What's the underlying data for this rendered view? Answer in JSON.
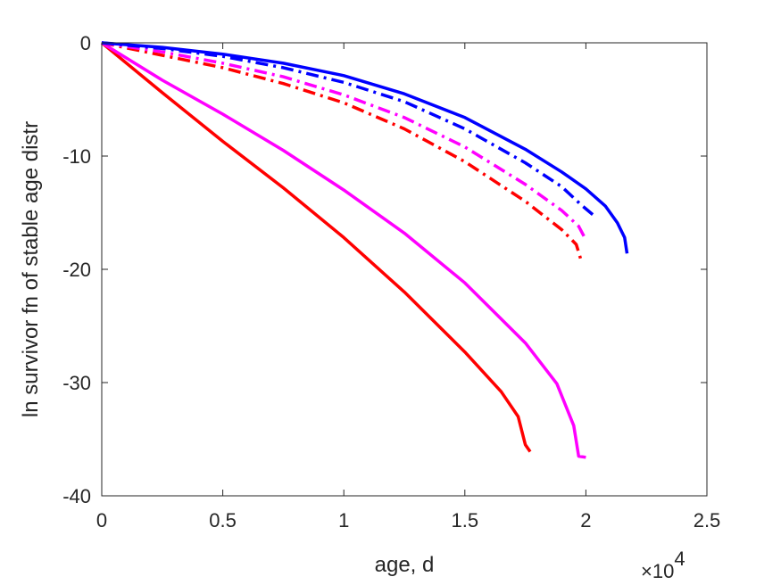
{
  "chart_data": {
    "type": "line",
    "title": "",
    "xlabel": "age, d",
    "ylabel": "ln survivor fn of stable age distr",
    "xlim": [
      0,
      25000
    ],
    "ylim": [
      -40,
      0
    ],
    "x_exponent_label": {
      "base": "×10",
      "exp": "4"
    },
    "x_tick_labels": [
      "0",
      "0.5",
      "1",
      "1.5",
      "2",
      "2.5"
    ],
    "x_tick_values": [
      0,
      5000,
      10000,
      15000,
      20000,
      25000
    ],
    "y_tick_labels": [
      "0",
      "-10",
      "-20",
      "-30",
      "-40"
    ],
    "y_tick_values": [
      0,
      -10,
      -20,
      -30,
      -40
    ],
    "grid": false,
    "series": [
      {
        "color": "#ff0000",
        "style": "solid",
        "x": [
          0,
          2500,
          5000,
          7500,
          10000,
          12500,
          15000,
          16500,
          17200,
          17500,
          17700
        ],
        "y": [
          0,
          -4.4,
          -8.7,
          -12.8,
          -17.2,
          -22.0,
          -27.3,
          -30.8,
          -33.0,
          -35.5,
          -36.1
        ]
      },
      {
        "color": "#ff00ff",
        "style": "solid",
        "x": [
          0,
          2500,
          5000,
          7500,
          10000,
          12500,
          15000,
          17500,
          18800,
          19500,
          19700,
          20000
        ],
        "y": [
          0,
          -3.3,
          -6.3,
          -9.5,
          -13.0,
          -16.8,
          -21.2,
          -26.5,
          -30.1,
          -33.8,
          -36.5,
          -36.6
        ]
      },
      {
        "color": "#ff0000",
        "style": "dashdot",
        "x": [
          0,
          2500,
          5000,
          7500,
          10000,
          12500,
          15000,
          17500,
          19000,
          19600,
          19800
        ],
        "y": [
          0,
          -1.1,
          -2.2,
          -3.6,
          -5.3,
          -7.6,
          -10.5,
          -14.0,
          -16.5,
          -17.8,
          -19.2
        ]
      },
      {
        "color": "#ff00ff",
        "style": "dashdot",
        "x": [
          0,
          2500,
          5000,
          7500,
          10000,
          12500,
          15000,
          17500,
          19000,
          19700,
          20000
        ],
        "y": [
          0,
          -0.8,
          -1.8,
          -3.0,
          -4.6,
          -6.6,
          -9.2,
          -12.5,
          -14.8,
          -16.2,
          -17.4
        ]
      },
      {
        "color": "#0000ff",
        "style": "dashdot",
        "x": [
          0,
          2500,
          5000,
          7500,
          10000,
          12500,
          15000,
          17500,
          19000,
          19800,
          20300
        ],
        "y": [
          0,
          -0.5,
          -1.2,
          -2.2,
          -3.5,
          -5.2,
          -7.6,
          -10.6,
          -12.7,
          -14.3,
          -15.2
        ]
      },
      {
        "color": "#0000ff",
        "style": "solid",
        "x": [
          0,
          2500,
          5000,
          7500,
          10000,
          12500,
          15000,
          17500,
          19000,
          20000,
          20800,
          21300,
          21600,
          21700
        ],
        "y": [
          0,
          -0.4,
          -1.0,
          -1.8,
          -2.9,
          -4.5,
          -6.6,
          -9.4,
          -11.4,
          -12.9,
          -14.4,
          -15.9,
          -17.2,
          -18.6
        ]
      }
    ]
  }
}
